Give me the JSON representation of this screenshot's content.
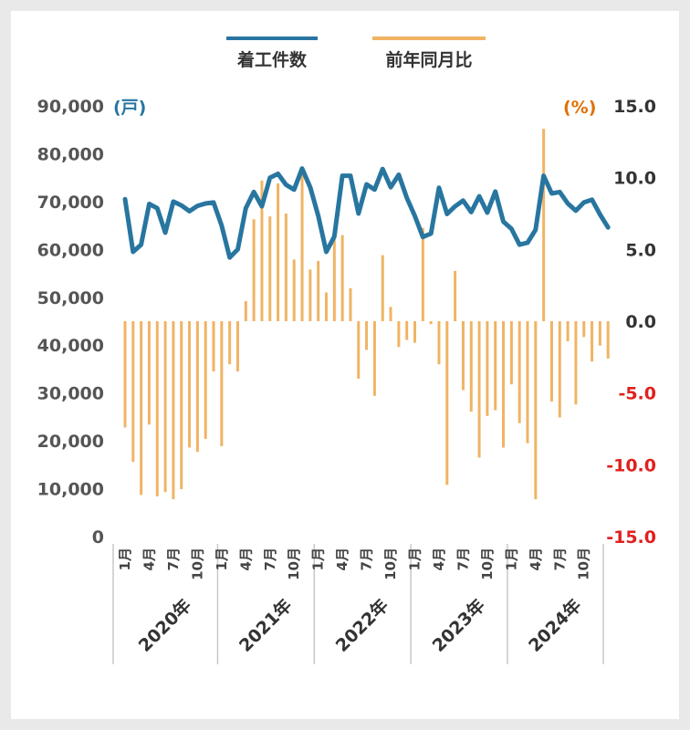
{
  "chart_data": {
    "type": "bar+line",
    "legend": {
      "position": "top-center",
      "items": [
        {
          "name": "着工件数",
          "color": "#2876a0"
        },
        {
          "name": "前年同月比",
          "color": "#f0b464"
        }
      ]
    },
    "left_axis": {
      "unit": "(戸)",
      "unit_color": "#2876a0",
      "range": [
        0,
        90000
      ],
      "ticks": [
        "0",
        "10,000",
        "20,000",
        "30,000",
        "40,000",
        "50,000",
        "60,000",
        "70,000",
        "80,000",
        "90,000"
      ],
      "tick_values": [
        0,
        10000,
        20000,
        30000,
        40000,
        50000,
        60000,
        70000,
        80000,
        90000
      ]
    },
    "right_axis": {
      "unit": "(%)",
      "unit_color": "#e07000",
      "range": [
        -15,
        15
      ],
      "ticks": [
        "-15.0",
        "-10.0",
        "-5.0",
        "0.0",
        "5.0",
        "10.0",
        "15.0"
      ],
      "tick_values": [
        -15,
        -10,
        -5,
        0,
        5,
        10,
        15
      ],
      "positive_color": "#333333",
      "negative_color": "#e02020"
    },
    "x_month_labels": [
      "1月",
      "4月",
      "7月",
      "10月"
    ],
    "years": [
      "2020年",
      "2021年",
      "2022年",
      "2023年",
      "2024年"
    ],
    "series": [
      {
        "name": "着工件数",
        "type": "line",
        "color": "#2876a0",
        "values": [
          70500,
          59500,
          61000,
          69500,
          68600,
          63500,
          70000,
          69200,
          68000,
          69100,
          69600,
          69800,
          65000,
          58300,
          60000,
          68600,
          72000,
          69000,
          75000,
          75800,
          73500,
          72500,
          76900,
          73000,
          67000,
          59500,
          62700,
          75400,
          75400,
          67500,
          73600,
          72500,
          76800,
          73000,
          75600,
          70800,
          67000,
          62600,
          63300,
          72900,
          67400,
          69000,
          70200,
          67800,
          71100,
          67700,
          72100,
          65800,
          64300,
          61000,
          61400,
          64100,
          75400,
          71700,
          72000,
          69600,
          68100,
          69800,
          70400,
          67300,
          64600
        ]
      },
      {
        "name": "前年同月比",
        "type": "bar",
        "color": "#f0b464",
        "values": [
          -7.4,
          -9.8,
          -12.1,
          -7.2,
          -12.2,
          -11.9,
          -12.4,
          -11.7,
          -8.8,
          -9.1,
          -8.2,
          -3.5,
          -8.7,
          -3.0,
          -3.5,
          1.4,
          7.1,
          9.8,
          7.3,
          9.6,
          7.5,
          4.3,
          10.3,
          3.6,
          4.2,
          2.0,
          6.2,
          6.0,
          2.3,
          -4.0,
          -2.0,
          -5.2,
          4.6,
          1.0,
          -1.8,
          -1.3,
          -1.5,
          6.5,
          -0.2,
          -3.0,
          -11.4,
          3.5,
          -4.8,
          -6.3,
          -9.5,
          -6.6,
          -6.2,
          -8.8,
          -4.4,
          -7.1,
          -8.5,
          -12.4,
          13.4,
          -5.6,
          -6.7,
          -1.4,
          -5.8,
          -1.1,
          -2.8,
          -1.7,
          -2.6
        ]
      }
    ]
  }
}
